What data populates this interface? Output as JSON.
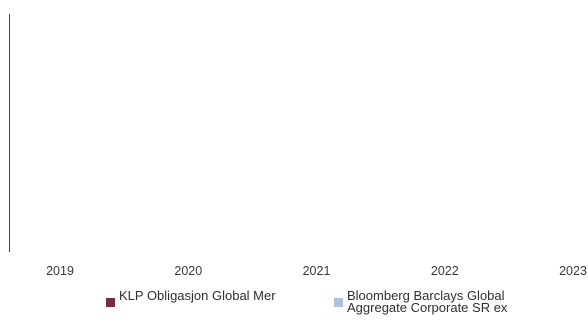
{
  "chart_data": {
    "type": "line",
    "title": "",
    "xlabel": "",
    "ylabel": "",
    "x_ticks": [
      "2019",
      "2020",
      "2021",
      "2022",
      "2023"
    ],
    "series": [
      {
        "name": "KLP Obligasjon Global Mer",
        "color": "#7b2a43",
        "values": []
      },
      {
        "name": "Bloomberg Barclays Global Aggregate Corporate SR ex",
        "color": "#a9c4e0",
        "values": []
      }
    ],
    "grid": false,
    "legend_position": "bottom"
  }
}
